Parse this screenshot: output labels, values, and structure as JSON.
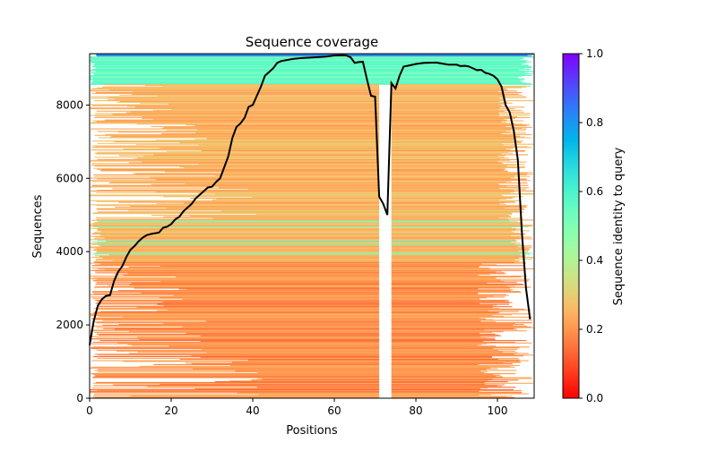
{
  "chart_data": {
    "type": "heatmap",
    "title": "Sequence coverage",
    "xlabel": "Positions",
    "ylabel": "Sequences",
    "xlim": [
      0,
      109
    ],
    "ylim": [
      0,
      9400
    ],
    "xticks": [
      "0",
      "20",
      "40",
      "60",
      "80",
      "100"
    ],
    "yticks": [
      "0",
      "2000",
      "4000",
      "6000",
      "8000"
    ],
    "colorbar": {
      "label": "Sequence identity to query",
      "colormap": "rainbow_r",
      "range": [
        0,
        1
      ],
      "ticks": [
        "0.0",
        "0.2",
        "0.4",
        "0.6",
        "0.8",
        "1.0"
      ]
    },
    "alignment_bands": [
      {
        "rows": [
          9300,
          9400
        ],
        "identity": [
          0.74,
          0.86
        ],
        "start": [
          0,
          1
        ],
        "end": [
          107,
          109
        ]
      },
      {
        "rows": [
          8550,
          9300
        ],
        "identity": [
          0.5,
          0.6
        ],
        "start": [
          0,
          1
        ],
        "end": [
          105,
          109
        ]
      },
      {
        "rows": [
          4850,
          8550
        ],
        "identity": [
          0.2,
          0.3
        ],
        "start": [
          0,
          46
        ],
        "end": [
          100,
          109
        ]
      },
      {
        "rows": [
          3700,
          4850
        ],
        "identity": [
          0.2,
          0.3
        ],
        "start": [
          0,
          6
        ],
        "end": [
          103,
          109
        ],
        "stripe_identity": 0.53,
        "stripe_fraction": 0.14
      },
      {
        "rows": [
          0,
          3700
        ],
        "identity": [
          0.13,
          0.25
        ],
        "start": [
          0,
          47
        ],
        "end": [
          95,
          109
        ]
      }
    ],
    "gap_columns": [
      71,
      74
    ],
    "coverage": {
      "name": "coverage",
      "color": "#000000",
      "x": [
        0,
        1,
        2,
        3,
        4,
        5,
        6,
        7,
        8,
        9,
        10,
        11,
        12,
        13,
        14,
        15,
        16,
        17,
        18,
        19,
        20,
        21,
        22,
        23,
        24,
        25,
        26,
        27,
        28,
        29,
        30,
        31,
        32,
        33,
        34,
        35,
        36,
        37,
        38,
        39,
        40,
        41,
        42,
        43,
        44,
        45,
        46,
        47,
        48,
        50,
        52,
        55,
        58,
        60,
        62,
        63,
        64,
        65,
        66,
        67,
        68,
        69,
        70,
        71,
        72,
        73,
        74,
        75,
        76,
        77,
        78,
        80,
        82,
        85,
        87,
        88,
        90,
        91,
        92,
        93,
        94,
        95,
        96,
        97,
        98,
        99,
        100,
        101,
        102,
        103,
        104,
        105,
        106,
        107,
        108
      ],
      "y": [
        1450,
        2100,
        2520,
        2700,
        2790,
        2810,
        3200,
        3450,
        3600,
        3850,
        4050,
        4150,
        4280,
        4380,
        4450,
        4480,
        4500,
        4520,
        4650,
        4680,
        4750,
        4880,
        4950,
        5100,
        5200,
        5300,
        5450,
        5550,
        5650,
        5750,
        5770,
        5900,
        6000,
        6300,
        6600,
        7100,
        7400,
        7500,
        7650,
        7950,
        8000,
        8250,
        8500,
        8800,
        8900,
        9000,
        9150,
        9200,
        9220,
        9260,
        9280,
        9300,
        9320,
        9350,
        9360,
        9350,
        9300,
        9150,
        9170,
        9180,
        8700,
        8250,
        8230,
        5500,
        5300,
        5000,
        8600,
        8450,
        8800,
        9050,
        9070,
        9120,
        9150,
        9160,
        9120,
        9100,
        9100,
        9060,
        9070,
        9050,
        9000,
        8950,
        8960,
        8880,
        8850,
        8800,
        8700,
        8500,
        8000,
        7800,
        7300,
        6500,
        4500,
        3000,
        2150
      ]
    }
  }
}
